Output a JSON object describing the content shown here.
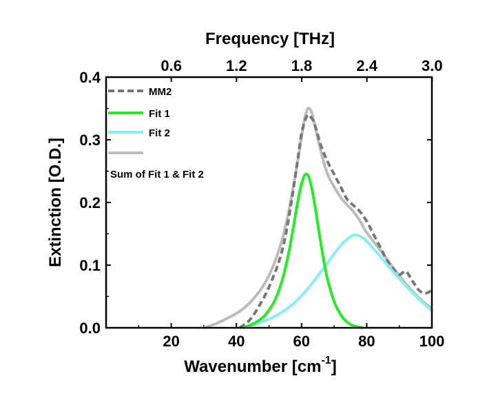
{
  "chart_data": {
    "type": "line",
    "xlabel": "Wavenumber [cm",
    "xlabel_sup": "-1",
    "xlabel_end": "]",
    "ylabel": "Extinction [O.D.]",
    "top_axis_label": "Frequency [THz]",
    "xlim": [
      0,
      100
    ],
    "ylim": [
      0.0,
      0.4
    ],
    "x_ticks": [
      20,
      40,
      60,
      80,
      100
    ],
    "x_tick_labels": [
      "20",
      "40",
      "60",
      "80",
      "100"
    ],
    "y_ticks": [
      0.0,
      0.1,
      0.2,
      0.3,
      0.4
    ],
    "y_tick_labels": [
      "0.0",
      "0.1",
      "0.2",
      "0.3",
      "0.4"
    ],
    "top_ticks_thz": [
      0.6,
      1.2,
      1.8,
      2.4,
      3.0
    ],
    "top_tick_labels": [
      "0.6",
      "1.2",
      "1.8",
      "2.4",
      "3.0"
    ],
    "legend_position": "top-left",
    "series": [
      {
        "name": "MM2",
        "color": "#777777",
        "style": "dashed",
        "x": [
          41,
          44,
          47,
          50,
          53,
          55,
          57,
          59,
          60,
          61,
          62,
          63,
          64,
          66,
          68,
          70,
          72,
          74,
          76,
          78,
          80,
          82,
          84,
          86,
          88,
          90,
          92,
          94,
          96,
          98,
          100
        ],
        "y": [
          0.0,
          0.012,
          0.035,
          0.065,
          0.105,
          0.145,
          0.205,
          0.275,
          0.31,
          0.33,
          0.34,
          0.335,
          0.325,
          0.29,
          0.265,
          0.245,
          0.225,
          0.205,
          0.195,
          0.185,
          0.17,
          0.15,
          0.13,
          0.11,
          0.095,
          0.085,
          0.09,
          0.075,
          0.06,
          0.055,
          0.06
        ]
      },
      {
        "name": "Fit 1",
        "color": "#22ee22",
        "style": "solid",
        "x": [
          42,
          45,
          48,
          50,
          52,
          54,
          56,
          57,
          58,
          59,
          60,
          61,
          62,
          63,
          64,
          65,
          66,
          67,
          68,
          70,
          72,
          74,
          76,
          79
        ],
        "y": [
          0.0,
          0.006,
          0.016,
          0.028,
          0.046,
          0.075,
          0.118,
          0.146,
          0.176,
          0.206,
          0.23,
          0.244,
          0.243,
          0.226,
          0.198,
          0.165,
          0.132,
          0.102,
          0.077,
          0.042,
          0.021,
          0.009,
          0.003,
          0.0
        ]
      },
      {
        "name": "Fit 2",
        "color": "#88eef5",
        "style": "solid",
        "x": [
          42,
          46,
          50,
          54,
          58,
          62,
          66,
          70,
          73,
          76,
          78,
          80,
          84,
          88,
          92,
          96,
          100
        ],
        "y": [
          0.0,
          0.006,
          0.014,
          0.025,
          0.041,
          0.063,
          0.09,
          0.118,
          0.137,
          0.148,
          0.146,
          0.138,
          0.115,
          0.09,
          0.067,
          0.046,
          0.027
        ]
      },
      {
        "name": "Sum of Fit 1 & Fit 2",
        "color": "#bbbbbb",
        "style": "solid",
        "x": [
          30,
          33,
          36,
          39,
          42,
          45,
          48,
          51,
          54,
          56,
          58,
          60,
          61,
          62,
          63,
          64,
          66,
          68,
          70,
          72,
          74,
          76,
          78,
          80,
          84,
          88,
          92,
          96,
          100
        ],
        "y": [
          0.0,
          0.005,
          0.012,
          0.02,
          0.03,
          0.045,
          0.065,
          0.095,
          0.14,
          0.185,
          0.24,
          0.305,
          0.335,
          0.35,
          0.345,
          0.325,
          0.28,
          0.245,
          0.225,
          0.208,
          0.196,
          0.185,
          0.17,
          0.152,
          0.125,
          0.097,
          0.07,
          0.048,
          0.03
        ]
      }
    ]
  }
}
